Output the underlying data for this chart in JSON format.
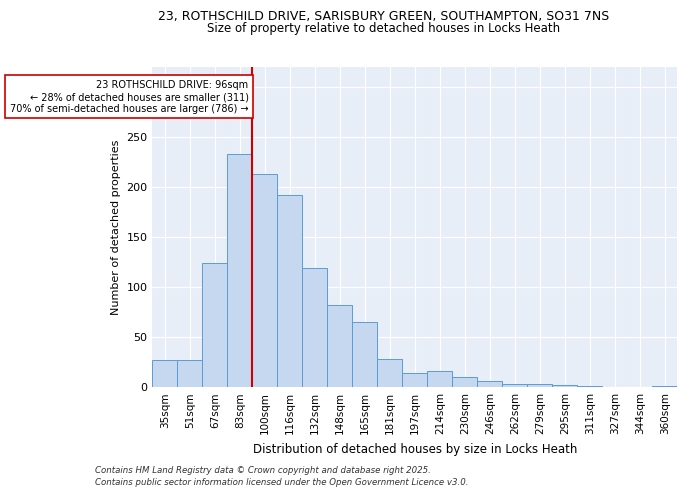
{
  "title_line1": "23, ROTHSCHILD DRIVE, SARISBURY GREEN, SOUTHAMPTON, SO31 7NS",
  "title_line2": "Size of property relative to detached houses in Locks Heath",
  "xlabel": "Distribution of detached houses by size in Locks Heath",
  "ylabel": "Number of detached properties",
  "categories": [
    "35sqm",
    "51sqm",
    "67sqm",
    "83sqm",
    "100sqm",
    "116sqm",
    "132sqm",
    "148sqm",
    "165sqm",
    "181sqm",
    "197sqm",
    "214sqm",
    "230sqm",
    "246sqm",
    "262sqm",
    "279sqm",
    "295sqm",
    "311sqm",
    "327sqm",
    "344sqm",
    "360sqm"
  ],
  "heights": [
    27,
    27,
    124,
    233,
    213,
    192,
    119,
    82,
    65,
    28,
    14,
    16,
    10,
    6,
    3,
    3,
    2,
    1,
    0,
    0,
    1
  ],
  "bar_color": "#c5d8f0",
  "bar_edge_color": "#5b9bd5",
  "vline_index": 4,
  "vline_color": "#cc0000",
  "annotation_text": "23 ROTHSCHILD DRIVE: 96sqm\n← 28% of detached houses are smaller (311)\n70% of semi-detached houses are larger (786) →",
  "annotation_box_color": "white",
  "annotation_box_edge": "#cc0000",
  "ylim": [
    0,
    320
  ],
  "yticks": [
    0,
    50,
    100,
    150,
    200,
    250,
    300
  ],
  "footer_line1": "Contains HM Land Registry data © Crown copyright and database right 2025.",
  "footer_line2": "Contains public sector information licensed under the Open Government Licence v3.0.",
  "bg_color": "#ffffff",
  "plot_bg_color": "#e8eef8"
}
